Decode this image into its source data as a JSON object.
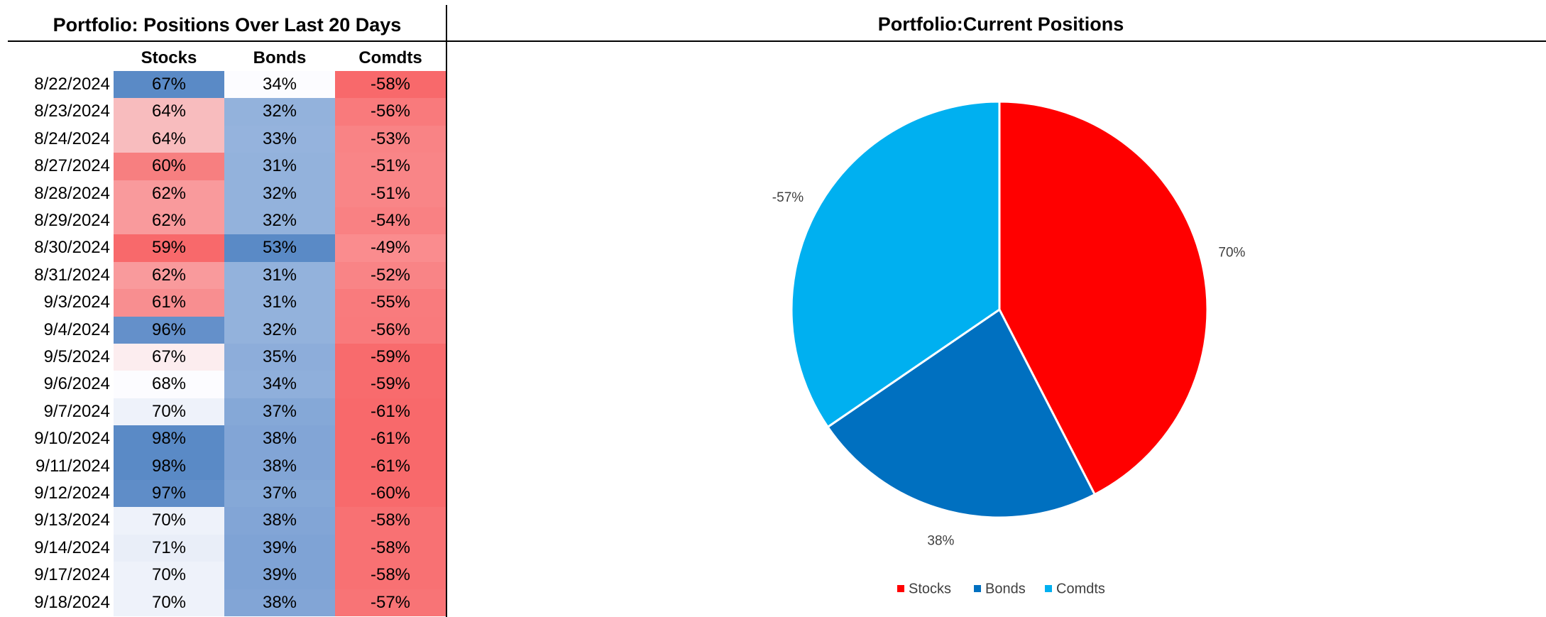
{
  "table": {
    "title": "Portfolio: Positions Over Last 20 Days",
    "columns": [
      "Stocks",
      "Bonds",
      "Comdts"
    ],
    "rows": [
      {
        "date": "8/22/2024",
        "cells": [
          "67%",
          "34%",
          "-58%"
        ],
        "fills": [
          "#5a8ac6",
          "#fcfcff",
          "#f8696b"
        ]
      },
      {
        "date": "8/23/2024",
        "cells": [
          "64%",
          "32%",
          "-56%"
        ],
        "fills": [
          "#f8bcbe",
          "#93b2dc",
          "#f97a7c"
        ]
      },
      {
        "date": "8/24/2024",
        "cells": [
          "64%",
          "33%",
          "-53%"
        ],
        "fills": [
          "#f8bcbe",
          "#95b3dd",
          "#f98385"
        ]
      },
      {
        "date": "8/27/2024",
        "cells": [
          "60%",
          "31%",
          "-51%"
        ],
        "fills": [
          "#f77f80",
          "#93b2dc",
          "#f98587"
        ]
      },
      {
        "date": "8/28/2024",
        "cells": [
          "62%",
          "32%",
          "-51%"
        ],
        "fills": [
          "#f99a9c",
          "#93b2dc",
          "#f98587"
        ]
      },
      {
        "date": "8/29/2024",
        "cells": [
          "62%",
          "32%",
          "-54%"
        ],
        "fills": [
          "#f99a9c",
          "#93b2dc",
          "#f98183"
        ]
      },
      {
        "date": "8/30/2024",
        "cells": [
          "59%",
          "53%",
          "-49%"
        ],
        "fills": [
          "#f8696b",
          "#5a8ac6",
          "#fa8c8e"
        ]
      },
      {
        "date": "8/31/2024",
        "cells": [
          "62%",
          "31%",
          "-52%"
        ],
        "fills": [
          "#f99a9c",
          "#93b2dc",
          "#f98486"
        ]
      },
      {
        "date": "9/3/2024",
        "cells": [
          "61%",
          "31%",
          "-55%"
        ],
        "fills": [
          "#f88e90",
          "#93b2dc",
          "#f97b7d"
        ]
      },
      {
        "date": "9/4/2024",
        "cells": [
          "96%",
          "32%",
          "-56%"
        ],
        "fills": [
          "#6490ca",
          "#93b2dc",
          "#f97a7c"
        ]
      },
      {
        "date": "9/5/2024",
        "cells": [
          "67%",
          "35%",
          "-59%"
        ],
        "fills": [
          "#fcedef",
          "#8dadda",
          "#f86b6d"
        ]
      },
      {
        "date": "9/6/2024",
        "cells": [
          "68%",
          "34%",
          "-59%"
        ],
        "fills": [
          "#fcfcff",
          "#8fafdb",
          "#f86b6d"
        ]
      },
      {
        "date": "9/7/2024",
        "cells": [
          "70%",
          "37%",
          "-61%"
        ],
        "fills": [
          "#eef2fa",
          "#85a8d7",
          "#f8696b"
        ]
      },
      {
        "date": "9/10/2024",
        "cells": [
          "98%",
          "38%",
          "-61%"
        ],
        "fills": [
          "#5a8ac6",
          "#82a5d6",
          "#f8696b"
        ]
      },
      {
        "date": "9/11/2024",
        "cells": [
          "98%",
          "38%",
          "-61%"
        ],
        "fills": [
          "#5a8ac6",
          "#82a5d6",
          "#f8696b"
        ]
      },
      {
        "date": "9/12/2024",
        "cells": [
          "97%",
          "37%",
          "-60%"
        ],
        "fills": [
          "#5f8dc8",
          "#85a8d7",
          "#f86a6c"
        ]
      },
      {
        "date": "9/13/2024",
        "cells": [
          "70%",
          "38%",
          "-58%"
        ],
        "fills": [
          "#eef2fa",
          "#82a5d6",
          "#f87173"
        ]
      },
      {
        "date": "9/14/2024",
        "cells": [
          "71%",
          "39%",
          "-58%"
        ],
        "fills": [
          "#e9eef8",
          "#7fa3d5",
          "#f87173"
        ]
      },
      {
        "date": "9/17/2024",
        "cells": [
          "70%",
          "39%",
          "-58%"
        ],
        "fills": [
          "#eef2fa",
          "#7fa3d5",
          "#f87173"
        ]
      },
      {
        "date": "9/18/2024",
        "cells": [
          "70%",
          "38%",
          "-57%"
        ],
        "fills": [
          "#eef2fa",
          "#82a5d6",
          "#f87476"
        ]
      }
    ]
  },
  "chart_data": {
    "type": "pie",
    "title": "Portfolio:Current Positions",
    "categories": [
      "Stocks",
      "Bonds",
      "Comdts"
    ],
    "values": [
      70,
      38,
      -57
    ],
    "value_labels": [
      "70%",
      "38%",
      "-57%"
    ],
    "colors": [
      "#ff0000",
      "#0070c0",
      "#00b0f0"
    ],
    "legend": "bottom"
  }
}
